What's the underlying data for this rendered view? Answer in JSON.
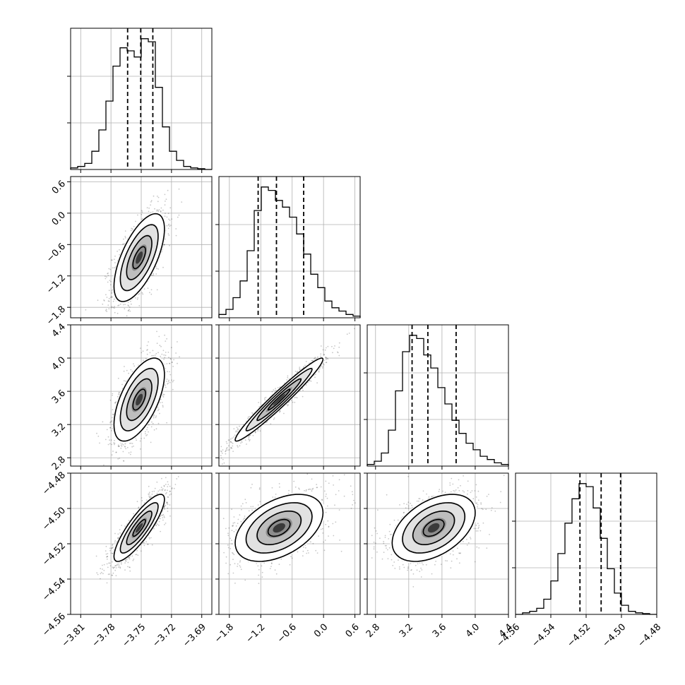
{
  "chart_data": {
    "type": "corner",
    "grid": true,
    "parameters": [
      {
        "range": [
          -3.82,
          -3.68
        ],
        "ticks": [
          -3.81,
          -3.78,
          -3.75,
          -3.72,
          -3.69
        ],
        "tick_labels": [
          "−3.81",
          "−3.78",
          "−3.75",
          "−3.72",
          "−3.69"
        ],
        "quantiles": [
          -3.7635,
          -3.7505,
          -3.7385
        ],
        "hist_counts": [
          1,
          2,
          4,
          12,
          26,
          45,
          68,
          80,
          78,
          74,
          86,
          84,
          54,
          28,
          12,
          6,
          2,
          1,
          0.5,
          0
        ]
      },
      {
        "range": [
          -2.0,
          0.7
        ],
        "ticks": [
          -1.8,
          -1.2,
          -0.6,
          0.0,
          0.6
        ],
        "tick_labels": [
          "−1.8",
          "−1.2",
          "−0.6",
          "0.0",
          "0.6"
        ],
        "quantiles": [
          -1.25,
          -0.9,
          -0.38
        ],
        "hist_counts": [
          2,
          5,
          12,
          22,
          40,
          64,
          78,
          76,
          70,
          66,
          60,
          50,
          38,
          26,
          18,
          10,
          6,
          4,
          2,
          1
        ]
      },
      {
        "range": [
          2.7,
          4.4
        ],
        "ticks": [
          2.8,
          3.2,
          3.6,
          4.0,
          4.4
        ],
        "tick_labels": [
          "2.8",
          "3.2",
          "3.6",
          "4.0",
          "4.4"
        ],
        "quantiles": [
          3.24,
          3.43,
          3.77
        ],
        "hist_counts": [
          1,
          3,
          8,
          22,
          46,
          70,
          80,
          78,
          68,
          60,
          48,
          38,
          28,
          20,
          14,
          10,
          6,
          4,
          2,
          1
        ]
      },
      {
        "range": [
          -4.56,
          -4.48
        ],
        "ticks": [
          -4.56,
          -4.54,
          -4.52,
          -4.5,
          -4.48
        ],
        "tick_labels": [
          "−4.56",
          "−4.54",
          "−4.52",
          "−4.50",
          "−4.48"
        ],
        "quantiles": [
          -4.5235,
          -4.5115,
          -4.5005
        ],
        "hist_counts": [
          0,
          1,
          2,
          4,
          10,
          22,
          40,
          60,
          76,
          86,
          84,
          70,
          50,
          30,
          14,
          6,
          2,
          1,
          0.5,
          0
        ]
      }
    ],
    "pairs": [
      {
        "x": 0,
        "y": 1,
        "center": [
          -3.752,
          -0.85
        ],
        "sigma": [
          0.0125,
          0.42
        ],
        "rho": 0.65
      },
      {
        "x": 0,
        "y": 2,
        "center": [
          -3.752,
          3.5
        ],
        "sigma": [
          0.0125,
          0.25
        ],
        "rho": 0.6
      },
      {
        "x": 1,
        "y": 2,
        "center": [
          -0.85,
          3.5
        ],
        "sigma": [
          0.42,
          0.25
        ],
        "rho": 0.97
      },
      {
        "x": 0,
        "y": 3,
        "center": [
          -3.752,
          -4.511
        ],
        "sigma": [
          0.0125,
          0.0095
        ],
        "rho": 0.85
      },
      {
        "x": 1,
        "y": 3,
        "center": [
          -0.85,
          -4.511
        ],
        "sigma": [
          0.42,
          0.0095
        ],
        "rho": 0.45
      },
      {
        "x": 2,
        "y": 3,
        "center": [
          3.5,
          -4.511
        ],
        "sigma": [
          0.25,
          0.0095
        ],
        "rho": 0.45
      }
    ]
  }
}
